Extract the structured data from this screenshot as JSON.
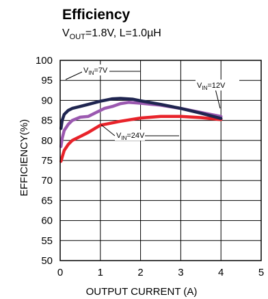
{
  "chart_data": {
    "type": "line",
    "title": "Efficiency",
    "subtitle": {
      "v": "V",
      "out_sub": "OUT",
      "text": "=1.8V, L=1.0µH"
    },
    "xlabel": "OUTPUT CURRENT (A)",
    "ylabel": "EFFICIENCY(%)",
    "xlim": [
      0,
      5
    ],
    "ylim": [
      50,
      100
    ],
    "xticks": [
      0,
      1,
      2,
      3,
      4,
      5
    ],
    "yticks": [
      50,
      55,
      60,
      65,
      70,
      75,
      80,
      85,
      90,
      95,
      100
    ],
    "grid": true,
    "series": [
      {
        "name": "VIN=7V",
        "label_main": "V",
        "label_sub": "IN",
        "label_value": "=7V",
        "color": "#1f2550",
        "x": [
          0.02,
          0.05,
          0.1,
          0.2,
          0.3,
          0.5,
          0.7,
          1.0,
          1.3,
          1.5,
          1.8,
          2.0,
          2.5,
          3.0,
          3.5,
          4.0
        ],
        "y": [
          83.0,
          85.0,
          86.5,
          87.5,
          88.0,
          88.5,
          89.0,
          89.8,
          90.4,
          90.5,
          90.3,
          89.9,
          89.0,
          88.0,
          86.8,
          85.5
        ]
      },
      {
        "name": "VIN=12V",
        "label_main": "V",
        "label_sub": "IN",
        "label_value": "=12V",
        "color": "#9b59b0",
        "x": [
          0.02,
          0.05,
          0.1,
          0.2,
          0.3,
          0.5,
          0.7,
          0.9,
          1.1,
          1.3,
          1.5,
          1.7,
          2.0,
          2.5,
          3.0,
          3.5,
          4.0
        ],
        "y": [
          78.5,
          80.5,
          82.5,
          84.0,
          85.0,
          85.8,
          86.0,
          87.0,
          88.0,
          88.5,
          89.2,
          89.5,
          89.3,
          88.8,
          88.0,
          87.0,
          86.0
        ]
      },
      {
        "name": "VIN=24V",
        "label_main": "V",
        "label_sub": "IN",
        "label_value": "=24V",
        "color": "#e8232a",
        "x": [
          0.02,
          0.05,
          0.1,
          0.2,
          0.3,
          0.5,
          0.7,
          0.9,
          1.0,
          1.2,
          1.5,
          2.0,
          2.5,
          3.0,
          3.5,
          4.0
        ],
        "y": [
          74.8,
          75.8,
          77.5,
          79.0,
          80.0,
          81.0,
          82.0,
          83.2,
          83.8,
          84.2,
          84.8,
          85.6,
          86.0,
          86.0,
          85.7,
          85.2
        ]
      }
    ]
  }
}
